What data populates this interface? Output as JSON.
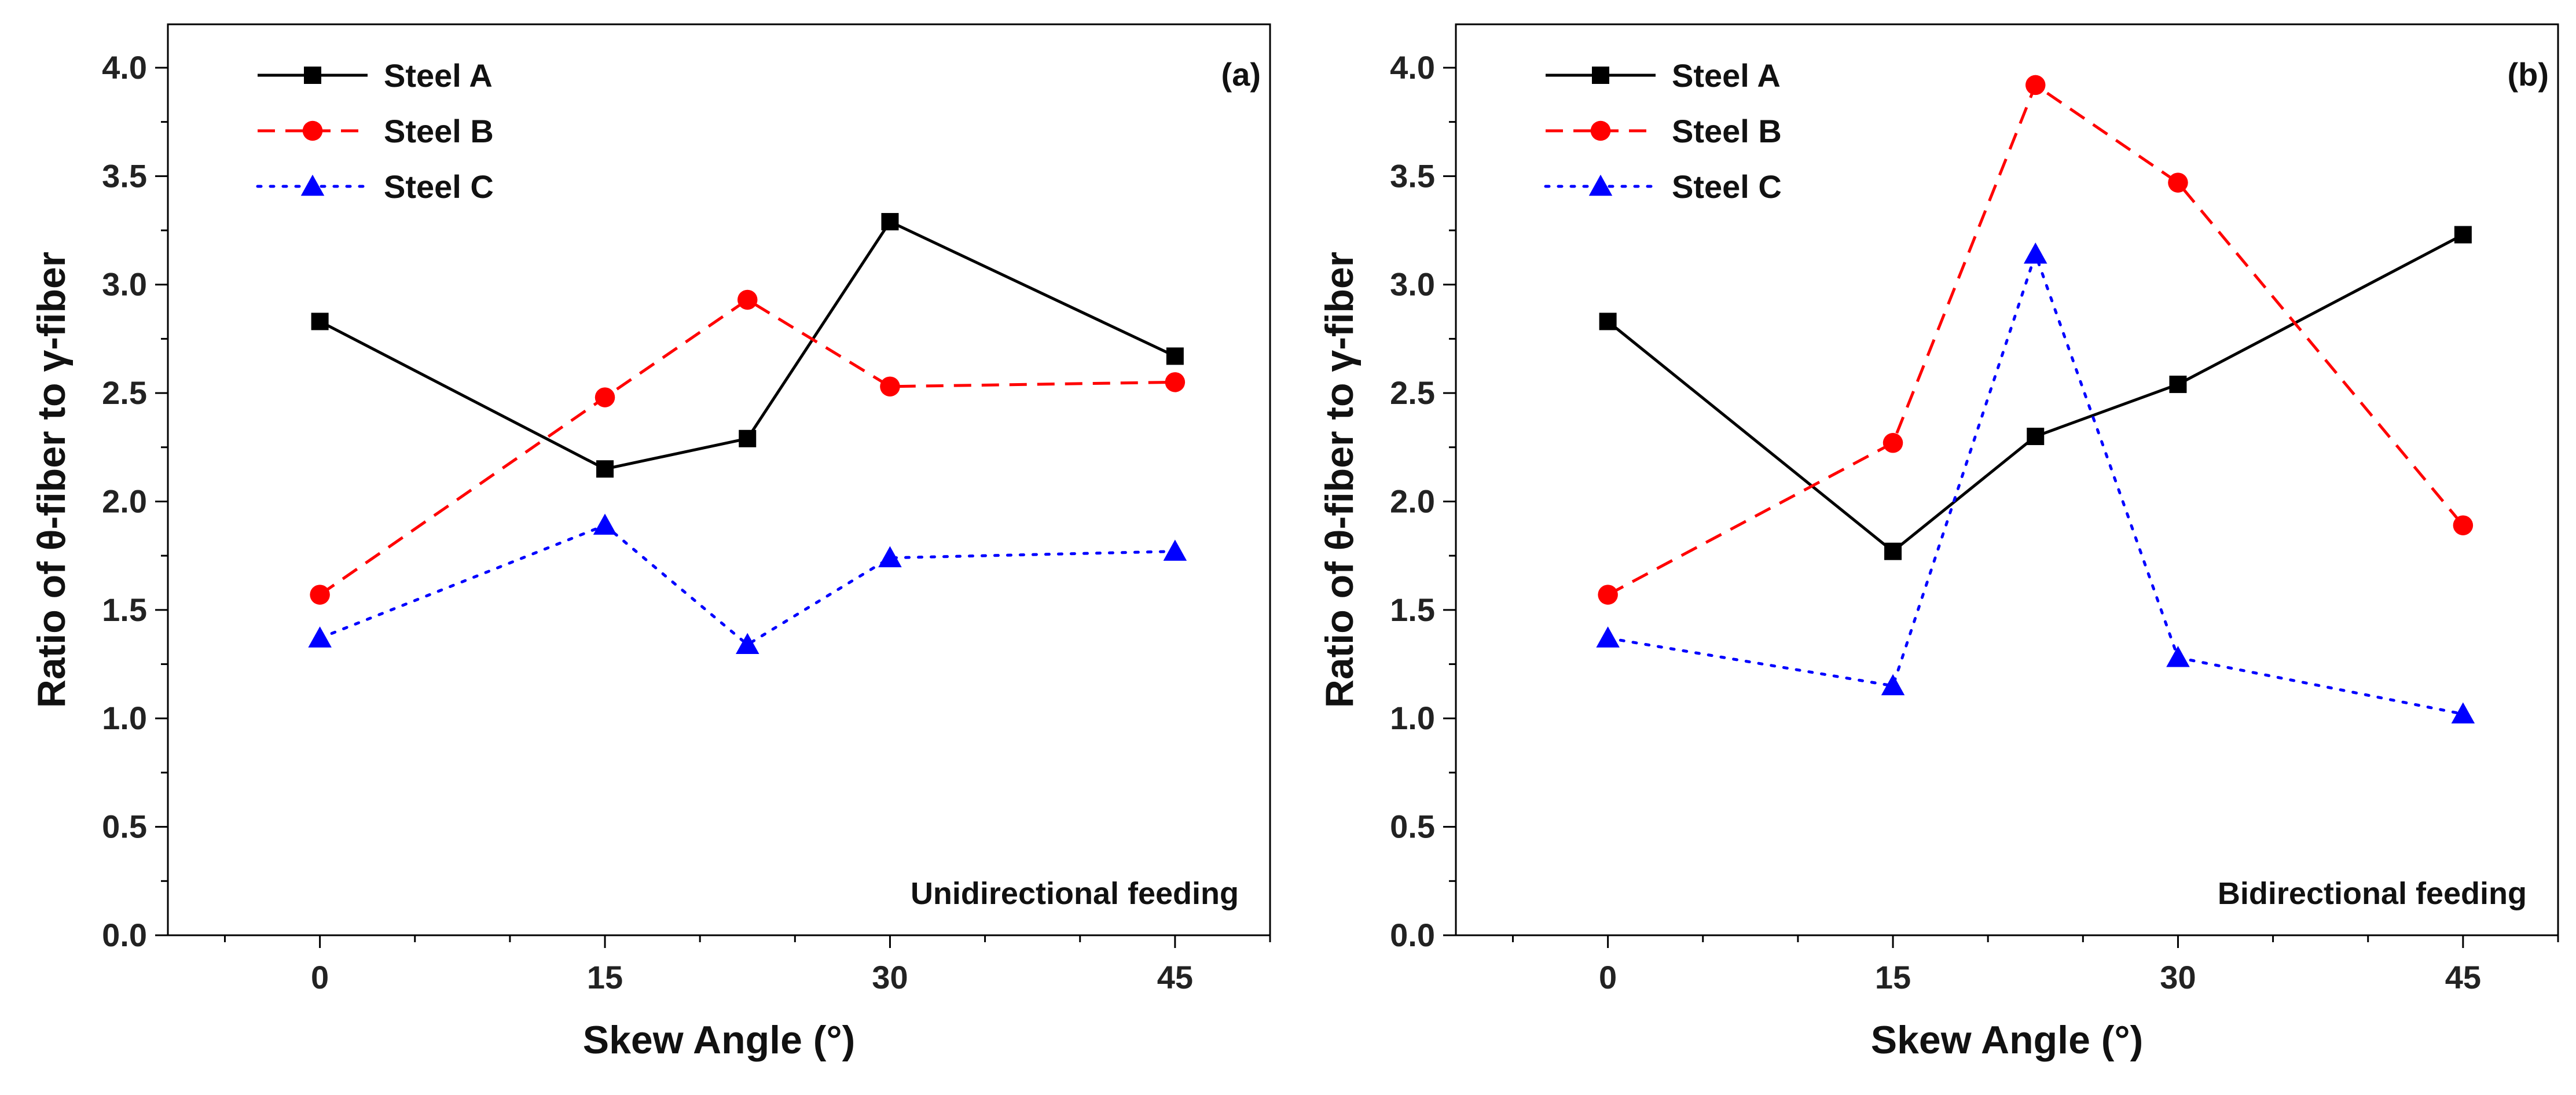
{
  "figure": {
    "x_unit_symbol": "°"
  },
  "chart_data": [
    {
      "type": "line",
      "panel_label": "(a)",
      "annotation": "Unidirectional feeding",
      "xlabel": "Skew Angle (°)",
      "ylabel": "Ratio of θ-fiber to γ-fiber",
      "xlim": [
        -8,
        50
      ],
      "ylim": [
        0,
        4.2
      ],
      "xticks": [
        0,
        15,
        30,
        45
      ],
      "xtick_labels": [
        "0",
        "15",
        "30",
        "45"
      ],
      "yticks": [
        0.0,
        0.5,
        1.0,
        1.5,
        2.0,
        2.5,
        3.0,
        3.5,
        4.0
      ],
      "ytick_labels": [
        "0.0",
        "0.5",
        "1.0",
        "1.5",
        "2.0",
        "2.5",
        "3.0",
        "3.5",
        "4.0"
      ],
      "legend_position": "top-left",
      "x": [
        0,
        15,
        22.5,
        30,
        45
      ],
      "series": [
        {
          "name": "Steel A",
          "color": "#000000",
          "dash": "solid",
          "marker": "square",
          "values": [
            2.83,
            2.15,
            2.29,
            3.29,
            2.67
          ]
        },
        {
          "name": "Steel B",
          "color": "#ff0000",
          "dash": "dashed",
          "marker": "circle",
          "values": [
            1.57,
            2.48,
            2.93,
            2.53,
            2.55
          ]
        },
        {
          "name": "Steel C",
          "color": "#0000ff",
          "dash": "dotted",
          "marker": "triangle",
          "values": [
            1.37,
            1.89,
            1.34,
            1.74,
            1.77
          ]
        }
      ]
    },
    {
      "type": "line",
      "panel_label": "(b)",
      "annotation": "Bidirectional feeding",
      "xlabel": "Skew Angle (°)",
      "ylabel": "Ratio of θ-fiber to γ-fiber",
      "xlim": [
        -8,
        50
      ],
      "ylim": [
        0,
        4.2
      ],
      "xticks": [
        0,
        15,
        30,
        45
      ],
      "xtick_labels": [
        "0",
        "15",
        "30",
        "45"
      ],
      "yticks": [
        0.0,
        0.5,
        1.0,
        1.5,
        2.0,
        2.5,
        3.0,
        3.5,
        4.0
      ],
      "ytick_labels": [
        "0.0",
        "0.5",
        "1.0",
        "1.5",
        "2.0",
        "2.5",
        "3.0",
        "3.5",
        "4.0"
      ],
      "legend_position": "top-left",
      "x": [
        0,
        15,
        22.5,
        30,
        45
      ],
      "series": [
        {
          "name": "Steel A",
          "color": "#000000",
          "dash": "solid",
          "marker": "square",
          "values": [
            2.83,
            1.77,
            2.3,
            2.54,
            3.23
          ]
        },
        {
          "name": "Steel B",
          "color": "#ff0000",
          "dash": "dashed",
          "marker": "circle",
          "values": [
            1.57,
            2.27,
            3.92,
            3.47,
            1.89
          ]
        },
        {
          "name": "Steel C",
          "color": "#0000ff",
          "dash": "dotted",
          "marker": "triangle",
          "values": [
            1.37,
            1.15,
            3.14,
            1.28,
            1.02
          ]
        }
      ]
    }
  ]
}
